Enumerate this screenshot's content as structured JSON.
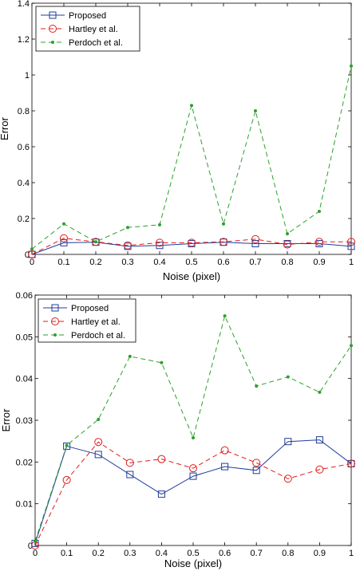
{
  "chart_data": [
    {
      "type": "line",
      "title": "",
      "xlabel": "Noise (pixel)",
      "ylabel": "Error",
      "xlim": [
        0,
        1
      ],
      "ylim": [
        0,
        1.4
      ],
      "x": [
        0,
        0.1,
        0.2,
        0.3,
        0.4,
        0.5,
        0.6,
        0.7,
        0.8,
        0.9,
        1
      ],
      "xticks": [
        "0",
        "0.1",
        "0.2",
        "0.3",
        "0.4",
        "0.5",
        "0.6",
        "0.7",
        "0.8",
        "0.9",
        "1"
      ],
      "yticks": [
        "0",
        "0.2",
        "0.4",
        "0.6",
        "0.8",
        "1",
        "1.2",
        "1.4"
      ],
      "grid": false,
      "legend_position": "top-left",
      "series": [
        {
          "name": "Proposed",
          "color": "#1f3d99",
          "style": "solid",
          "marker": "square",
          "values": [
            0.0,
            0.065,
            0.068,
            0.045,
            0.05,
            0.06,
            0.068,
            0.06,
            0.06,
            0.06,
            0.045
          ]
        },
        {
          "name": "Hartley et al.",
          "color": "#e01b1b",
          "style": "dashed",
          "marker": "circle",
          "values": [
            0.0,
            0.09,
            0.07,
            0.05,
            0.065,
            0.065,
            0.07,
            0.085,
            0.055,
            0.07,
            0.07
          ]
        },
        {
          "name": "Perdoch et al.",
          "color": "#2ca02c",
          "style": "dashed",
          "marker": "dot",
          "values": [
            0.03,
            0.17,
            0.07,
            0.15,
            0.165,
            0.83,
            0.17,
            0.8,
            0.115,
            0.24,
            1.05
          ]
        }
      ]
    },
    {
      "type": "line",
      "title": "",
      "xlabel": "Noise (pixel)",
      "ylabel": "Error",
      "xlim": [
        0,
        1
      ],
      "ylim": [
        0,
        0.06
      ],
      "x": [
        0,
        0.1,
        0.2,
        0.3,
        0.4,
        0.5,
        0.6,
        0.7,
        0.8,
        0.9,
        1
      ],
      "xticks": [
        "0",
        "0.1",
        "0.2",
        "0.3",
        "0.4",
        "0.5",
        "0.6",
        "0.7",
        "0.8",
        "0.9",
        "1"
      ],
      "yticks": [
        "0",
        "0.01",
        "0.02",
        "0.03",
        "0.04",
        "0.05",
        "0.06"
      ],
      "grid": false,
      "legend_position": "top-left",
      "series": [
        {
          "name": "Proposed",
          "color": "#1f3d99",
          "style": "solid",
          "marker": "square",
          "values": [
            0.0005,
            0.0238,
            0.0218,
            0.017,
            0.0123,
            0.0166,
            0.0189,
            0.018,
            0.0249,
            0.0253,
            0.0196
          ]
        },
        {
          "name": "Hartley et al.",
          "color": "#e01b1b",
          "style": "dashed",
          "marker": "circle",
          "values": [
            0.0,
            0.0157,
            0.0248,
            0.0198,
            0.0207,
            0.0185,
            0.0228,
            0.0198,
            0.016,
            0.0182,
            0.0196
          ]
        },
        {
          "name": "Perdoch et al.",
          "color": "#2ca02c",
          "style": "dashed",
          "marker": "dot",
          "values": [
            0.001,
            0.024,
            0.0302,
            0.0453,
            0.0438,
            0.0258,
            0.055,
            0.0382,
            0.0404,
            0.0367,
            0.0479
          ]
        }
      ]
    }
  ]
}
